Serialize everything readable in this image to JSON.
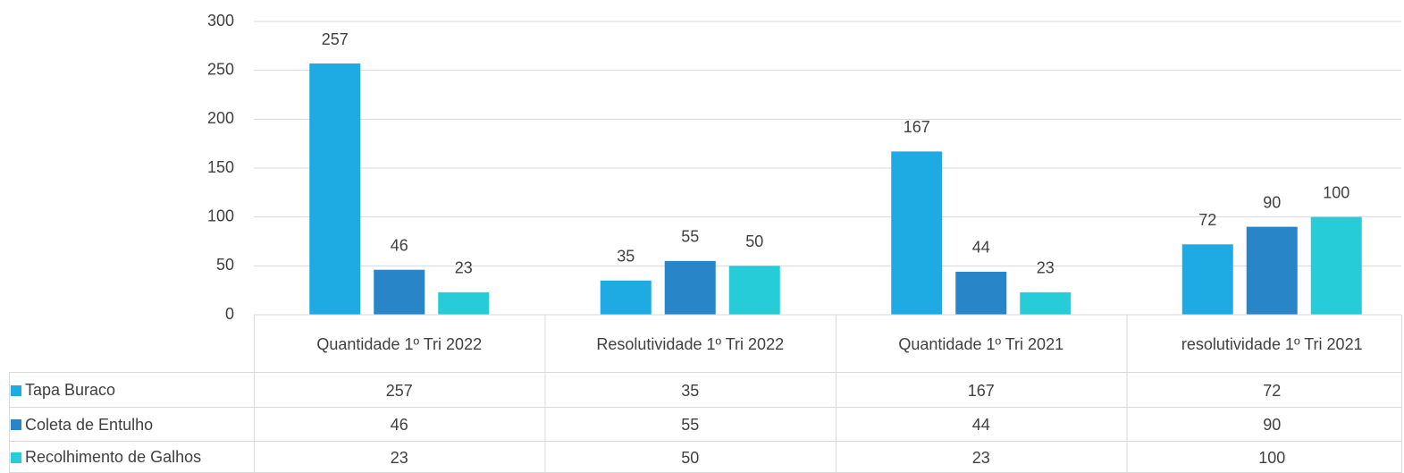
{
  "chart_data": {
    "type": "bar",
    "categories": [
      "Quantidade 1º Tri 2022",
      "Resolutividade 1º Tri 2022",
      "Quantidade 1º Tri 2021",
      "resolutividade 1º Tri 2021"
    ],
    "series": [
      {
        "name": "Tapa Buraco",
        "color": "#1eaae2",
        "values": [
          257,
          35,
          167,
          72
        ]
      },
      {
        "name": "Coleta de Entulho",
        "color": "#2785c8",
        "values": [
          46,
          55,
          44,
          90
        ]
      },
      {
        "name": "Recolhimento de Galhos",
        "color": "#26ccd8",
        "values": [
          23,
          50,
          23,
          100
        ]
      }
    ],
    "ylim": [
      0,
      300
    ],
    "yticks": [
      0,
      50,
      100,
      150,
      200,
      250,
      300
    ],
    "grid": true,
    "data_labels": true,
    "data_table": true
  }
}
